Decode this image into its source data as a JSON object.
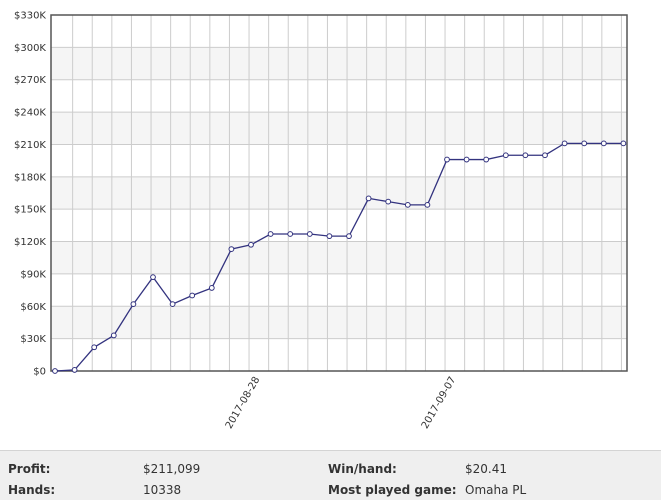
{
  "chart_data": {
    "type": "line",
    "title": "",
    "xlabel": "",
    "ylabel": "",
    "ylim": [
      0,
      330000
    ],
    "yticks": [
      "$0",
      "$30K",
      "$60K",
      "$90K",
      "$120K",
      "$150K",
      "$180K",
      "$210K",
      "$240K",
      "$270K",
      "$300K",
      "$330K"
    ],
    "xtick_labels": [
      {
        "index": 10,
        "label": "2017-08-28"
      },
      {
        "index": 20,
        "label": "2017-09-07"
      }
    ],
    "grid": true,
    "series": [
      {
        "values": [
          0,
          1000,
          22000,
          33000,
          62000,
          87000,
          62000,
          70000,
          77000,
          113000,
          117000,
          127000,
          127000,
          127000,
          125000,
          125000,
          160000,
          157000,
          154000,
          154000,
          196000,
          196000,
          196000,
          200000,
          200000,
          200000,
          211000,
          211000,
          211000,
          211000
        ]
      }
    ],
    "colors": {
      "line": "#33337f",
      "marker_fill": "#ffffff",
      "band": "#f5f5f5",
      "grid": "#cccccc",
      "frame": "#555555"
    }
  },
  "stats": {
    "profit_label": "Profit:",
    "profit_value": "$211,099",
    "hands_label": "Hands:",
    "hands_value": "10338",
    "winhand_label": "Win/hand:",
    "winhand_value": "$20.41",
    "game_label": "Most played game:",
    "game_value": "Omaha PL"
  }
}
